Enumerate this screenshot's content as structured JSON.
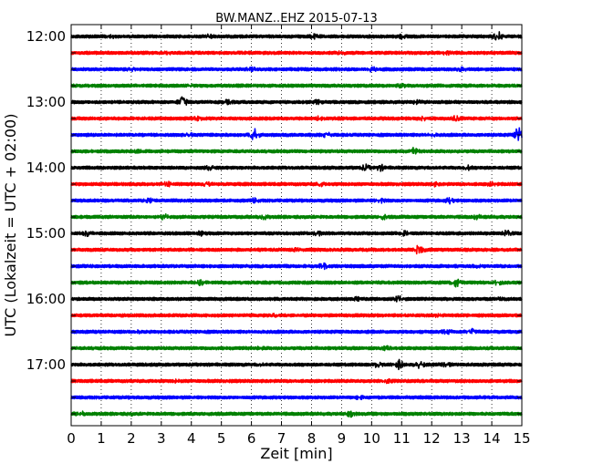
{
  "chart_data": {
    "type": "line",
    "title": "BW.MANZ..EHZ 2015-07-13",
    "xlabel": "Zeit  [min]",
    "ylabel": "UTC (Lokalzeit = UTC + 02:00)",
    "xlim": [
      0,
      15
    ],
    "x_ticks": [
      "0",
      "1",
      "2",
      "3",
      "4",
      "5",
      "6",
      "7",
      "8",
      "9",
      "10",
      "11",
      "12",
      "13",
      "14",
      "15"
    ],
    "y_tick_labels": [
      "12:00",
      "13:00",
      "14:00",
      "15:00",
      "16:00",
      "17:00"
    ],
    "trace_interval_min": 15,
    "grid": "vertical-dotted",
    "colors": [
      "#000000",
      "#ff0000",
      "#0000ff",
      "#008000"
    ],
    "traces": [
      {
        "start": "12:00",
        "events": [
          [
            1.3,
            0.35
          ],
          [
            4.6,
            0.3
          ],
          [
            8.1,
            0.35
          ],
          [
            11.0,
            0.3
          ],
          [
            14.2,
            1.0
          ]
        ]
      },
      {
        "start": "12:15",
        "events": [
          [
            3.2,
            0.2
          ],
          [
            9.0,
            0.25
          ],
          [
            12.5,
            0.25
          ]
        ]
      },
      {
        "start": "12:30",
        "events": [
          [
            2.0,
            0.25
          ],
          [
            6.0,
            0.3
          ],
          [
            10.0,
            0.55
          ],
          [
            13.0,
            0.25
          ]
        ]
      },
      {
        "start": "12:45",
        "events": [
          [
            4.0,
            0.2
          ],
          [
            11.0,
            0.25
          ]
        ]
      },
      {
        "start": "13:00",
        "events": [
          [
            3.7,
            1.6
          ],
          [
            5.2,
            0.3
          ],
          [
            8.2,
            0.3
          ],
          [
            11.5,
            0.3
          ]
        ]
      },
      {
        "start": "13:15",
        "events": [
          [
            4.2,
            0.3
          ],
          [
            8.3,
            0.45
          ],
          [
            11.7,
            0.35
          ],
          [
            12.8,
            0.4
          ]
        ]
      },
      {
        "start": "13:30",
        "events": [
          [
            3.9,
            0.3
          ],
          [
            6.1,
            1.4
          ],
          [
            8.5,
            0.4
          ],
          [
            12.0,
            0.3
          ],
          [
            14.9,
            1.8
          ]
        ]
      },
      {
        "start": "13:45",
        "events": [
          [
            2.2,
            0.2
          ],
          [
            11.4,
            0.7
          ]
        ]
      },
      {
        "start": "14:00",
        "events": [
          [
            4.6,
            0.3
          ],
          [
            9.8,
            0.55
          ],
          [
            10.3,
            0.55
          ],
          [
            13.2,
            0.5
          ]
        ]
      },
      {
        "start": "14:15",
        "events": [
          [
            3.2,
            0.4
          ],
          [
            4.5,
            0.4
          ],
          [
            8.3,
            0.3
          ],
          [
            12.1,
            0.3
          ],
          [
            14.0,
            0.3
          ]
        ]
      },
      {
        "start": "14:30",
        "events": [
          [
            2.6,
            0.3
          ],
          [
            6.1,
            0.4
          ],
          [
            10.3,
            0.4
          ],
          [
            12.6,
            0.5
          ]
        ]
      },
      {
        "start": "14:45",
        "events": [
          [
            3.1,
            0.5
          ],
          [
            6.4,
            0.45
          ],
          [
            10.4,
            0.35
          ],
          [
            13.5,
            0.35
          ]
        ]
      },
      {
        "start": "15:00",
        "events": [
          [
            0.5,
            0.45
          ],
          [
            4.3,
            0.4
          ],
          [
            8.2,
            0.35
          ],
          [
            11.1,
            0.35
          ],
          [
            14.5,
            0.5
          ]
        ]
      },
      {
        "start": "15:15",
        "events": [
          [
            11.6,
            1.3
          ],
          [
            7.5,
            0.15
          ]
        ]
      },
      {
        "start": "15:30",
        "events": [
          [
            8.4,
            0.55
          ],
          [
            13.5,
            0.2
          ]
        ]
      },
      {
        "start": "15:45",
        "events": [
          [
            4.3,
            0.4
          ],
          [
            12.8,
            1.0
          ],
          [
            14.2,
            0.35
          ]
        ]
      },
      {
        "start": "16:00",
        "events": [
          [
            9.5,
            0.3
          ],
          [
            10.9,
            0.5
          ],
          [
            14.3,
            0.2
          ]
        ]
      },
      {
        "start": "16:15",
        "events": [
          [
            6.8,
            0.2
          ],
          [
            12.2,
            0.2
          ]
        ]
      },
      {
        "start": "16:30",
        "events": [
          [
            12.5,
            0.4
          ],
          [
            13.3,
            0.55
          ],
          [
            2.2,
            0.15
          ]
        ]
      },
      {
        "start": "16:45",
        "events": [
          [
            10.5,
            0.4
          ],
          [
            6.3,
            0.15
          ]
        ]
      },
      {
        "start": "17:00",
        "events": [
          [
            10.2,
            0.45
          ],
          [
            10.9,
            1.0
          ],
          [
            11.6,
            0.6
          ],
          [
            12.5,
            0.35
          ],
          [
            6.3,
            0.2
          ]
        ]
      },
      {
        "start": "17:15",
        "events": [
          [
            10.5,
            0.4
          ],
          [
            3.5,
            0.15
          ]
        ]
      },
      {
        "start": "17:30",
        "events": [
          [
            9.6,
            0.25
          ]
        ]
      },
      {
        "start": "17:45",
        "events": [
          [
            0.3,
            0.45
          ],
          [
            9.3,
            0.5
          ],
          [
            2.0,
            0.15
          ]
        ]
      }
    ]
  }
}
